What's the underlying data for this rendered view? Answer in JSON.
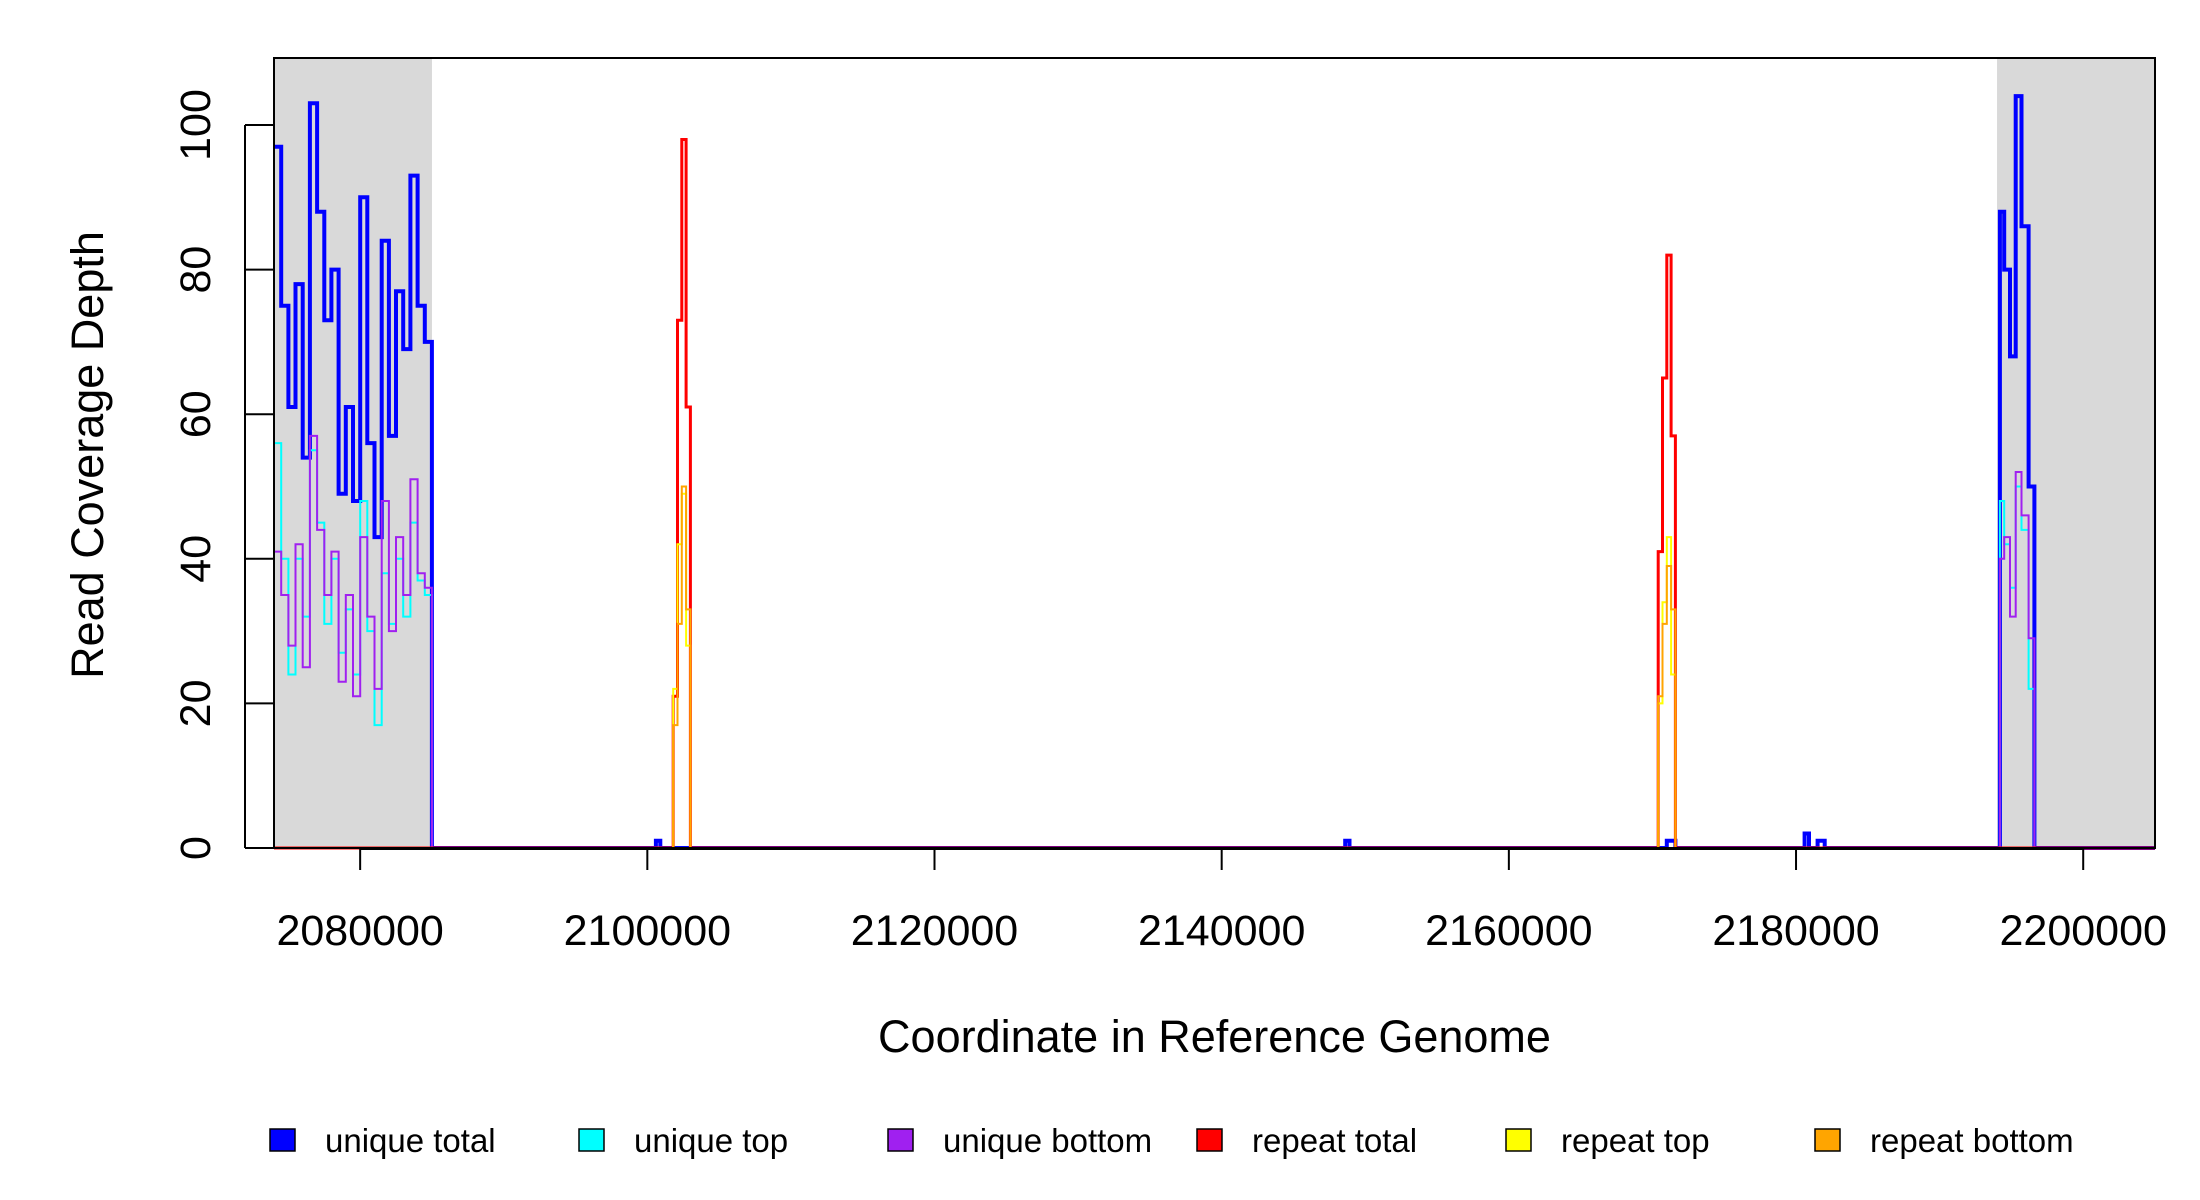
{
  "chart_data": {
    "type": "line",
    "title": "",
    "xlabel": "Coordinate in Reference Genome",
    "ylabel": "Read Coverage Depth",
    "xlim": [
      2074000,
      2205000
    ],
    "ylim": [
      0,
      108
    ],
    "x_ticks": [
      2080000,
      2100000,
      2120000,
      2140000,
      2160000,
      2180000,
      2200000
    ],
    "x_tick_labels": [
      "2080000",
      "2100000",
      "2120000",
      "2140000",
      "2160000",
      "2180000",
      "2200000"
    ],
    "y_ticks": [
      0,
      20,
      40,
      60,
      80,
      100
    ],
    "y_tick_labels": [
      "0",
      "20",
      "40",
      "60",
      "80",
      "100"
    ],
    "grid": false,
    "legend_position": "bottom",
    "shaded_regions": [
      {
        "x0": 2074000,
        "x1": 2085000,
        "color": "#d9d9d9"
      },
      {
        "x0": 2194000,
        "x1": 2205000,
        "color": "#d9d9d9"
      }
    ],
    "series": [
      {
        "name": "unique total",
        "color": "#0000ff",
        "width": 4,
        "x": [
          2074000,
          2074500,
          2075000,
          2075500,
          2076000,
          2076500,
          2077000,
          2077500,
          2078000,
          2078500,
          2079000,
          2079500,
          2080000,
          2080500,
          2081000,
          2081500,
          2082000,
          2082500,
          2083000,
          2083500,
          2084000,
          2084500,
          2085000,
          2085200,
          2100600,
          2100900,
          2148600,
          2148900,
          2171000,
          2171600,
          2180600,
          2180900,
          2181500,
          2182000,
          2194200,
          2194500,
          2194900,
          2195300,
          2195700,
          2196200,
          2196600,
          2205000
        ],
        "y": [
          97,
          75,
          61,
          78,
          54,
          103,
          88,
          73,
          80,
          49,
          61,
          48,
          90,
          56,
          43,
          84,
          57,
          77,
          69,
          93,
          75,
          70,
          0,
          0,
          1,
          0,
          1,
          0,
          1,
          0,
          2,
          0,
          1,
          0,
          88,
          80,
          68,
          104,
          86,
          50,
          0,
          0
        ]
      },
      {
        "name": "unique top",
        "color": "#00ffff",
        "width": 2,
        "x": [
          2074000,
          2074500,
          2075000,
          2075500,
          2076000,
          2076500,
          2077000,
          2077500,
          2078000,
          2078500,
          2079000,
          2079500,
          2080000,
          2080500,
          2081000,
          2081500,
          2082000,
          2082500,
          2083000,
          2083500,
          2084000,
          2084500,
          2085000,
          2085200,
          2194200,
          2194500,
          2194900,
          2195300,
          2195700,
          2196200,
          2196600,
          2205000
        ],
        "y": [
          56,
          40,
          24,
          40,
          32,
          55,
          45,
          31,
          40,
          27,
          33,
          24,
          48,
          30,
          17,
          38,
          31,
          40,
          32,
          45,
          37,
          35,
          0,
          0,
          48,
          42,
          36,
          50,
          44,
          22,
          0,
          0
        ]
      },
      {
        "name": "unique bottom",
        "color": "#a020f0",
        "width": 2,
        "x": [
          2074000,
          2074500,
          2075000,
          2075500,
          2076000,
          2076500,
          2077000,
          2077500,
          2078000,
          2078500,
          2079000,
          2079500,
          2080000,
          2080500,
          2081000,
          2081500,
          2082000,
          2082500,
          2083000,
          2083500,
          2084000,
          2084500,
          2085000,
          2085200,
          2194200,
          2194500,
          2194900,
          2195300,
          2195700,
          2196200,
          2196600,
          2205000
        ],
        "y": [
          41,
          35,
          28,
          42,
          25,
          57,
          44,
          35,
          41,
          23,
          35,
          21,
          43,
          32,
          22,
          48,
          30,
          43,
          35,
          51,
          38,
          36,
          0,
          0,
          40,
          43,
          32,
          52,
          46,
          29,
          0,
          0
        ]
      },
      {
        "name": "repeat total",
        "color": "#ff0000",
        "width": 3,
        "x": [
          2074000,
          2101800,
          2102100,
          2102400,
          2102700,
          2103000,
          2103300,
          2170400,
          2170700,
          2171000,
          2171300,
          2171600,
          2205000
        ],
        "y": [
          0,
          21,
          73,
          98,
          61,
          0,
          0,
          41,
          65,
          82,
          57,
          0,
          0
        ]
      },
      {
        "name": "repeat top",
        "color": "#ffff00",
        "width": 2,
        "x": [
          2074000,
          2101800,
          2102100,
          2102400,
          2102700,
          2103000,
          2103300,
          2170400,
          2170700,
          2171000,
          2171300,
          2171600,
          2205000
        ],
        "y": [
          0,
          22,
          42,
          49,
          28,
          0,
          0,
          20,
          34,
          43,
          24,
          0,
          0
        ]
      },
      {
        "name": "repeat bottom",
        "color": "#ffa500",
        "width": 2,
        "x": [
          2074000,
          2101800,
          2102100,
          2102400,
          2102700,
          2103000,
          2103300,
          2170400,
          2170700,
          2171000,
          2171300,
          2171600,
          2205000
        ],
        "y": [
          0,
          17,
          31,
          50,
          33,
          0,
          0,
          21,
          31,
          39,
          33,
          0,
          0
        ]
      }
    ]
  }
}
